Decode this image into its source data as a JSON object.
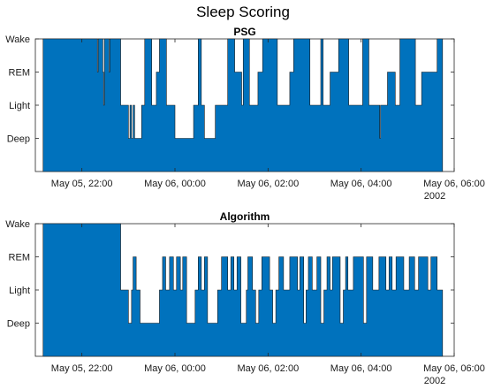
{
  "figure_title": "Sleep Scoring",
  "colors": {
    "fill": "#0072BD",
    "axis": "#262626"
  },
  "chart_data": [
    {
      "type": "area",
      "title": "PSG",
      "x_start": "May 05, 21:10",
      "x_range": [
        "May 05, 21:00",
        "May 06, 06:00"
      ],
      "y_categories": [
        "Deep",
        "Light",
        "REM",
        "Wake"
      ],
      "y_axis_labels": [
        "Wake",
        "REM",
        "Light",
        "Deep"
      ],
      "y_values_encoding": "Deep=1, Light=2, REM=3, Wake=4",
      "xtick_labels": [
        "May 05, 22:00",
        "May 06, 00:00",
        "May 06, 02:00",
        "May 06, 04:00",
        "May 06, 06:00"
      ],
      "x_secondary_label": "2002",
      "grid": false,
      "steps_minutes": [
        [
          0,
          4
        ],
        [
          70,
          3
        ],
        [
          71,
          4
        ],
        [
          77,
          3
        ],
        [
          78,
          2
        ],
        [
          79,
          4
        ],
        [
          85,
          3
        ],
        [
          86,
          4
        ],
        [
          100,
          2
        ],
        [
          110,
          1
        ],
        [
          112,
          2
        ],
        [
          114,
          1
        ],
        [
          116,
          2
        ],
        [
          118,
          1
        ],
        [
          127,
          2
        ],
        [
          131,
          4
        ],
        [
          140,
          2
        ],
        [
          146,
          3
        ],
        [
          150,
          4
        ],
        [
          159,
          2
        ],
        [
          170,
          1
        ],
        [
          174,
          1
        ],
        [
          194,
          2
        ],
        [
          196,
          2
        ],
        [
          200,
          4
        ],
        [
          204,
          2
        ],
        [
          208,
          1
        ],
        [
          222,
          2
        ],
        [
          232,
          2
        ],
        [
          238,
          4
        ],
        [
          247,
          3
        ],
        [
          252,
          3
        ],
        [
          256,
          2
        ],
        [
          258,
          4
        ],
        [
          262,
          4
        ],
        [
          266,
          2
        ],
        [
          277,
          3
        ],
        [
          280,
          3
        ],
        [
          283,
          4
        ],
        [
          290,
          4
        ],
        [
          302,
          2
        ],
        [
          318,
          3
        ],
        [
          323,
          4
        ],
        [
          344,
          2
        ],
        [
          358,
          4
        ],
        [
          361,
          2
        ],
        [
          370,
          3
        ],
        [
          381,
          4
        ],
        [
          394,
          2
        ],
        [
          398,
          2
        ],
        [
          412,
          4
        ],
        [
          420,
          2
        ],
        [
          434,
          1
        ],
        [
          435,
          2
        ],
        [
          444,
          3
        ],
        [
          450,
          3
        ],
        [
          454,
          2
        ],
        [
          460,
          4
        ],
        [
          477,
          4
        ],
        [
          480,
          2
        ],
        [
          488,
          3
        ],
        [
          495,
          3
        ],
        [
          508,
          4
        ],
        [
          510,
          4
        ],
        [
          515,
          0
        ]
      ]
    },
    {
      "type": "area",
      "title": "Algorithm",
      "x_start": "May 05, 21:10",
      "x_range": [
        "May 05, 21:00",
        "May 06, 06:00"
      ],
      "y_categories": [
        "Deep",
        "Light",
        "REM",
        "Wake"
      ],
      "y_axis_labels": [
        "Wake",
        "REM",
        "Light",
        "Deep"
      ],
      "y_values_encoding": "Deep=1, Light=2, REM=3, Wake=4",
      "xtick_labels": [
        "May 05, 22:00",
        "May 06, 00:00",
        "May 06, 02:00",
        "May 06, 04:00",
        "May 06, 06:00"
      ],
      "x_secondary_label": "2002",
      "grid": false,
      "steps_minutes": [
        [
          0,
          4
        ],
        [
          100,
          2
        ],
        [
          110,
          1
        ],
        [
          114,
          2
        ],
        [
          116,
          3
        ],
        [
          120,
          2
        ],
        [
          125,
          1
        ],
        [
          150,
          2
        ],
        [
          154,
          3
        ],
        [
          158,
          2
        ],
        [
          163,
          3
        ],
        [
          168,
          2
        ],
        [
          172,
          3
        ],
        [
          177,
          2
        ],
        [
          180,
          3
        ],
        [
          185,
          1
        ],
        [
          196,
          2
        ],
        [
          200,
          3
        ],
        [
          204,
          2
        ],
        [
          208,
          3
        ],
        [
          212,
          1
        ],
        [
          225,
          2
        ],
        [
          230,
          3
        ],
        [
          238,
          2
        ],
        [
          242,
          3
        ],
        [
          246,
          2
        ],
        [
          250,
          3
        ],
        [
          255,
          1
        ],
        [
          262,
          2
        ],
        [
          264,
          3
        ],
        [
          270,
          2
        ],
        [
          274,
          1
        ],
        [
          278,
          2
        ],
        [
          282,
          3
        ],
        [
          292,
          2
        ],
        [
          296,
          1
        ],
        [
          300,
          2
        ],
        [
          304,
          3
        ],
        [
          310,
          2
        ],
        [
          318,
          3
        ],
        [
          328,
          2
        ],
        [
          331,
          3
        ],
        [
          336,
          1
        ],
        [
          339,
          2
        ],
        [
          342,
          3
        ],
        [
          347,
          2
        ],
        [
          353,
          3
        ],
        [
          358,
          1
        ],
        [
          362,
          2
        ],
        [
          366,
          3
        ],
        [
          370,
          2
        ],
        [
          373,
          3
        ],
        [
          383,
          1
        ],
        [
          387,
          2
        ],
        [
          390,
          3
        ],
        [
          393,
          2
        ],
        [
          400,
          3
        ],
        [
          413,
          1
        ],
        [
          417,
          3
        ],
        [
          425,
          2
        ],
        [
          433,
          3
        ],
        [
          442,
          2
        ],
        [
          446,
          3
        ],
        [
          450,
          2
        ],
        [
          455,
          3
        ],
        [
          465,
          2
        ],
        [
          472,
          3
        ],
        [
          479,
          2
        ],
        [
          484,
          3
        ],
        [
          496,
          2
        ],
        [
          500,
          3
        ],
        [
          508,
          2
        ],
        [
          515,
          0
        ]
      ]
    }
  ]
}
